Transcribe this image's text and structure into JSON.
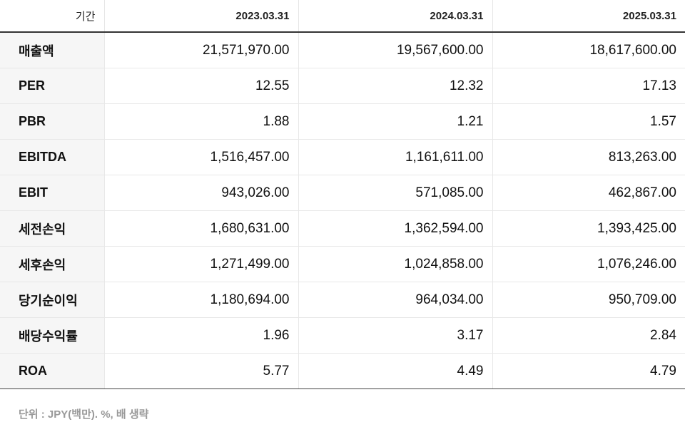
{
  "header": {
    "label": "기간",
    "periods": [
      "2023.03.31",
      "2024.03.31",
      "2025.03.31"
    ]
  },
  "rows": [
    {
      "label": "매출액",
      "values": [
        "21,571,970.00",
        "19,567,600.00",
        "18,617,600.00"
      ]
    },
    {
      "label": "PER",
      "values": [
        "12.55",
        "12.32",
        "17.13"
      ]
    },
    {
      "label": "PBR",
      "values": [
        "1.88",
        "1.21",
        "1.57"
      ]
    },
    {
      "label": "EBITDA",
      "values": [
        "1,516,457.00",
        "1,161,611.00",
        "813,263.00"
      ]
    },
    {
      "label": "EBIT",
      "values": [
        "943,026.00",
        "571,085.00",
        "462,867.00"
      ]
    },
    {
      "label": "세전손익",
      "values": [
        "1,680,631.00",
        "1,362,594.00",
        "1,393,425.00"
      ]
    },
    {
      "label": "세후손익",
      "values": [
        "1,271,499.00",
        "1,024,858.00",
        "1,076,246.00"
      ]
    },
    {
      "label": "당기순이익",
      "values": [
        "1,180,694.00",
        "964,034.00",
        "950,709.00"
      ]
    },
    {
      "label": "배당수익률",
      "values": [
        "1.96",
        "3.17",
        "2.84"
      ]
    },
    {
      "label": "ROA",
      "values": [
        "5.77",
        "4.49",
        "4.79"
      ]
    }
  ],
  "footnote": "단위 : JPY(백만). %, 배 생략"
}
